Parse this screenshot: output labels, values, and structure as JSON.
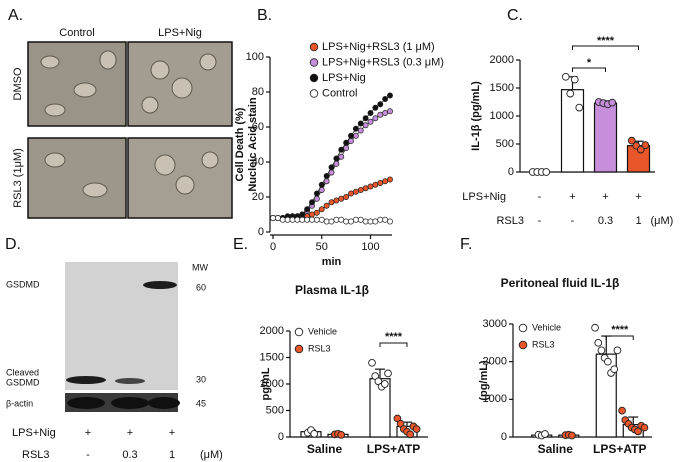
{
  "micrographs": {
    "panel": "A.",
    "columns": [
      "Control",
      "LPS+Nig"
    ],
    "rows": [
      "DMSO",
      "RSL3 (1μM)"
    ]
  },
  "blot": {
    "panel": "D.",
    "mw_header": "MW",
    "bands": [
      {
        "label": [
          "GSDMD"
        ],
        "mw": 60
      },
      {
        "label": [
          "Cleaved",
          "GSDMD"
        ],
        "mw": 30
      },
      {
        "label": [
          "β-actin"
        ],
        "mw": 45
      }
    ],
    "conditions": [
      {
        "name": "LPS+Nig",
        "labels": [
          "+",
          "+",
          "+"
        ]
      },
      {
        "name": "RSL3",
        "labels": [
          "-",
          "0.3",
          "1"
        ],
        "unit": "(μM)"
      }
    ]
  },
  "chart_data": [
    {
      "type": "line",
      "panel": "B.",
      "ylabel": [
        "Cell Death (%)",
        "Nucleic Acid stain"
      ],
      "xlabel": "min",
      "x": [
        0,
        5,
        10,
        15,
        20,
        25,
        30,
        35,
        40,
        45,
        50,
        55,
        60,
        65,
        70,
        75,
        80,
        85,
        90,
        95,
        100,
        105,
        110,
        115,
        120
      ],
      "xlim": [
        0,
        120
      ],
      "xticks": [
        0,
        50,
        100
      ],
      "ylim": [
        0,
        100
      ],
      "yticks": [
        0,
        20,
        40,
        60,
        80,
        100
      ],
      "series": [
        {
          "name": "LPS+Nig+RSL3 (1 μM)",
          "color": "#e8562a",
          "values": [
            8,
            8,
            8,
            8,
            8,
            8,
            9,
            9,
            10,
            11,
            13,
            15,
            17,
            18,
            19,
            20,
            22,
            23,
            24,
            25,
            26,
            27,
            28,
            29,
            30
          ]
        },
        {
          "name": "LPS+Nig+RSL3 (0.3 μM)",
          "color": "#c78fdb",
          "values": [
            8,
            8,
            8,
            8,
            9,
            9,
            10,
            12,
            15,
            19,
            24,
            29,
            34,
            39,
            43,
            48,
            52,
            55,
            58,
            61,
            63,
            65,
            67,
            68,
            69
          ]
        },
        {
          "name": "LPS+Nig",
          "color": "#111111",
          "values": [
            8,
            8,
            8,
            9,
            9,
            9,
            10,
            13,
            17,
            22,
            27,
            32,
            37,
            42,
            47,
            51,
            55,
            59,
            62,
            65,
            68,
            71,
            73,
            76,
            78
          ]
        },
        {
          "name": "Control",
          "color": "#ffffff",
          "values": [
            8,
            8,
            7,
            7,
            7,
            7,
            7,
            7,
            7,
            7,
            7,
            6,
            6,
            7,
            7,
            6,
            6,
            7,
            7,
            6,
            6,
            6,
            7,
            7,
            6
          ]
        }
      ]
    },
    {
      "type": "bar",
      "panel": "C.",
      "ylabel": "IL-1β (pg/mL)",
      "ylim": [
        0,
        2000
      ],
      "yticks": [
        0,
        500,
        1000,
        1500,
        2000
      ],
      "values": [
        0,
        1470,
        1230,
        470
      ],
      "errors": [
        0,
        230,
        40,
        80
      ],
      "colors": [
        "#ffffff",
        "#ffffff",
        "#c78fdb",
        "#e8562a"
      ],
      "points": [
        [
          0,
          0,
          0,
          0
        ],
        [
          1700,
          1400,
          1650,
          1150
        ],
        [
          1250,
          1230,
          1210,
          1240
        ],
        [
          560,
          470,
          400,
          480
        ]
      ],
      "conditions": [
        {
          "name": "LPS+Nig",
          "labels": [
            "-",
            "+",
            "+",
            "+"
          ]
        },
        {
          "name": "RSL3",
          "labels": [
            "-",
            "-",
            "0.3",
            "1"
          ],
          "unit": "(μM)"
        }
      ],
      "annotations": [
        {
          "text": "*",
          "from": 1,
          "to": 2
        },
        {
          "text": "****",
          "from": 1,
          "to": 3
        }
      ]
    },
    {
      "type": "grouped-bar",
      "panel": "E.",
      "title": "Plasma IL-1β",
      "ylabel": "pg/mL",
      "categories": [
        "Saline",
        "LPS+ATP"
      ],
      "ylim": [
        0,
        2000
      ],
      "yticks": [
        0,
        500,
        1000,
        1500,
        2000
      ],
      "series": [
        {
          "name": "Vehicle",
          "color": "#ffffff",
          "values": [
            100,
            1100
          ],
          "errors": [
            30,
            180
          ],
          "points": [
            [
              80,
              130,
              60
            ],
            [
              1400,
              1150,
              1050,
              950,
              1000,
              1200
            ]
          ]
        },
        {
          "name": "RSL3",
          "color": "#e8562a",
          "values": [
            50,
            200
          ],
          "errors": [
            10,
            80
          ],
          "points": [
            [
              50,
              60,
              40
            ],
            [
              350,
              250,
              150,
              100,
              50,
              200,
              150
            ]
          ]
        }
      ],
      "annotations": [
        {
          "text": "****",
          "category": 1
        }
      ]
    },
    {
      "type": "grouped-bar",
      "panel": "F.",
      "title": "Peritoneal fluid IL-1β",
      "ylabel": "(pg/mL)",
      "categories": [
        "Saline",
        "LPS+ATP"
      ],
      "ylim": [
        0,
        3000
      ],
      "yticks": [
        0,
        1000,
        2000,
        3000
      ],
      "series": [
        {
          "name": "Vehicle",
          "color": "#ffffff",
          "values": [
            50,
            2200
          ],
          "errors": [
            20,
            480
          ],
          "points": [
            [
              60,
              40,
              80
            ],
            [
              2900,
              2500,
              2300,
              2100,
              2000,
              1700,
              1800,
              2300
            ]
          ]
        },
        {
          "name": "RSL3",
          "color": "#e8562a",
          "values": [
            50,
            330
          ],
          "errors": [
            20,
            200
          ],
          "points": [
            [
              50,
              60,
              40
            ],
            [
              700,
              450,
              350,
              250,
              200,
              150,
              300,
              250
            ]
          ]
        }
      ],
      "annotations": [
        {
          "text": "****",
          "category": 1
        }
      ]
    }
  ]
}
